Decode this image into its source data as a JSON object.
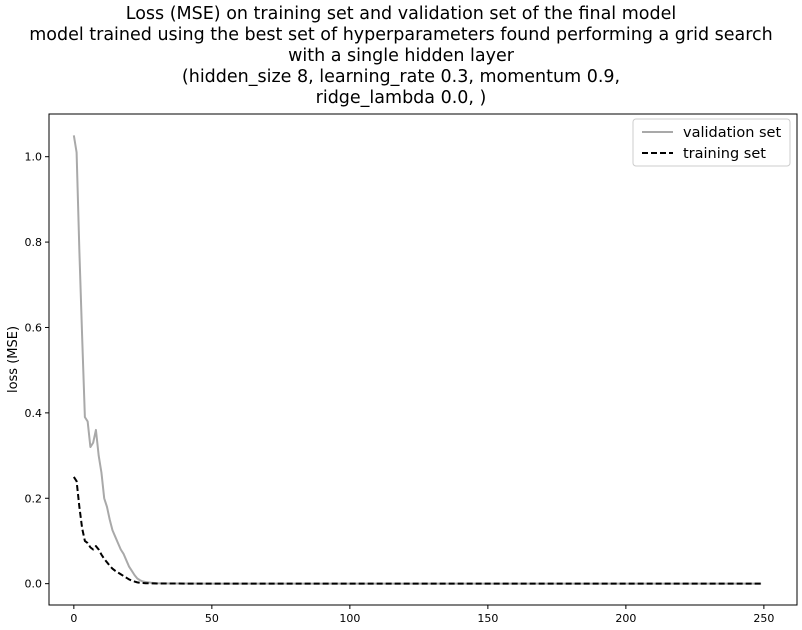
{
  "chart_data": {
    "type": "line",
    "title_lines": [
      "Loss (MSE) on training set and validation set of the final model",
      "model trained using the best set of hyperparameters found performing a grid search",
      "with a single hidden layer",
      "(hidden_size 8, learning_rate 0.3, momentum 0.9,",
      "ridge_lambda 0.0, )"
    ],
    "xlabel": "",
    "ylabel": "loss (MSE)",
    "xlim": [
      -9,
      262
    ],
    "ylim": [
      -0.05,
      1.1
    ],
    "xticks": [
      "0",
      "50",
      "100",
      "150",
      "200",
      "250"
    ],
    "yticks": [
      "0.0",
      "0.2",
      "0.4",
      "0.6",
      "0.8",
      "1.0"
    ],
    "grid": false,
    "legend_position": "top-right",
    "series": [
      {
        "name": "validation set",
        "color": "#a9a9a9",
        "style": "solid",
        "x": [
          0,
          1,
          2,
          3,
          4,
          5,
          6,
          7,
          8,
          9,
          10,
          11,
          12,
          13,
          14,
          15,
          16,
          17,
          18,
          19,
          20,
          21,
          22,
          23,
          24,
          25,
          26,
          27,
          28,
          30,
          35,
          40,
          50,
          75,
          100,
          150,
          200,
          249
        ],
        "values": [
          1.05,
          1.01,
          0.78,
          0.58,
          0.39,
          0.38,
          0.32,
          0.33,
          0.36,
          0.3,
          0.26,
          0.2,
          0.18,
          0.15,
          0.125,
          0.11,
          0.095,
          0.08,
          0.07,
          0.055,
          0.04,
          0.03,
          0.02,
          0.012,
          0.008,
          0.005,
          0.004,
          0.003,
          0.002,
          0.001,
          0.0005,
          0.0003,
          0.0002,
          0.0001,
          0.0001,
          0.0001,
          0.0001,
          0.0001
        ]
      },
      {
        "name": "training set",
        "color": "#000000",
        "style": "dashed",
        "x": [
          0,
          1,
          2,
          3,
          4,
          5,
          6,
          7,
          8,
          9,
          10,
          11,
          12,
          13,
          14,
          15,
          16,
          17,
          18,
          19,
          20,
          21,
          22,
          23,
          24,
          25,
          26,
          27,
          28,
          30,
          35,
          40,
          50,
          75,
          100,
          150,
          200,
          249
        ],
        "values": [
          0.25,
          0.24,
          0.18,
          0.13,
          0.1,
          0.095,
          0.085,
          0.08,
          0.088,
          0.08,
          0.068,
          0.058,
          0.05,
          0.042,
          0.035,
          0.03,
          0.026,
          0.022,
          0.018,
          0.014,
          0.01,
          0.007,
          0.005,
          0.003,
          0.002,
          0.0015,
          0.001,
          0.001,
          0.0008,
          0.0005,
          0.0003,
          0.0002,
          0.0001,
          0.0001,
          0.0001,
          0.0001,
          0.0001,
          0.0001
        ]
      }
    ]
  }
}
